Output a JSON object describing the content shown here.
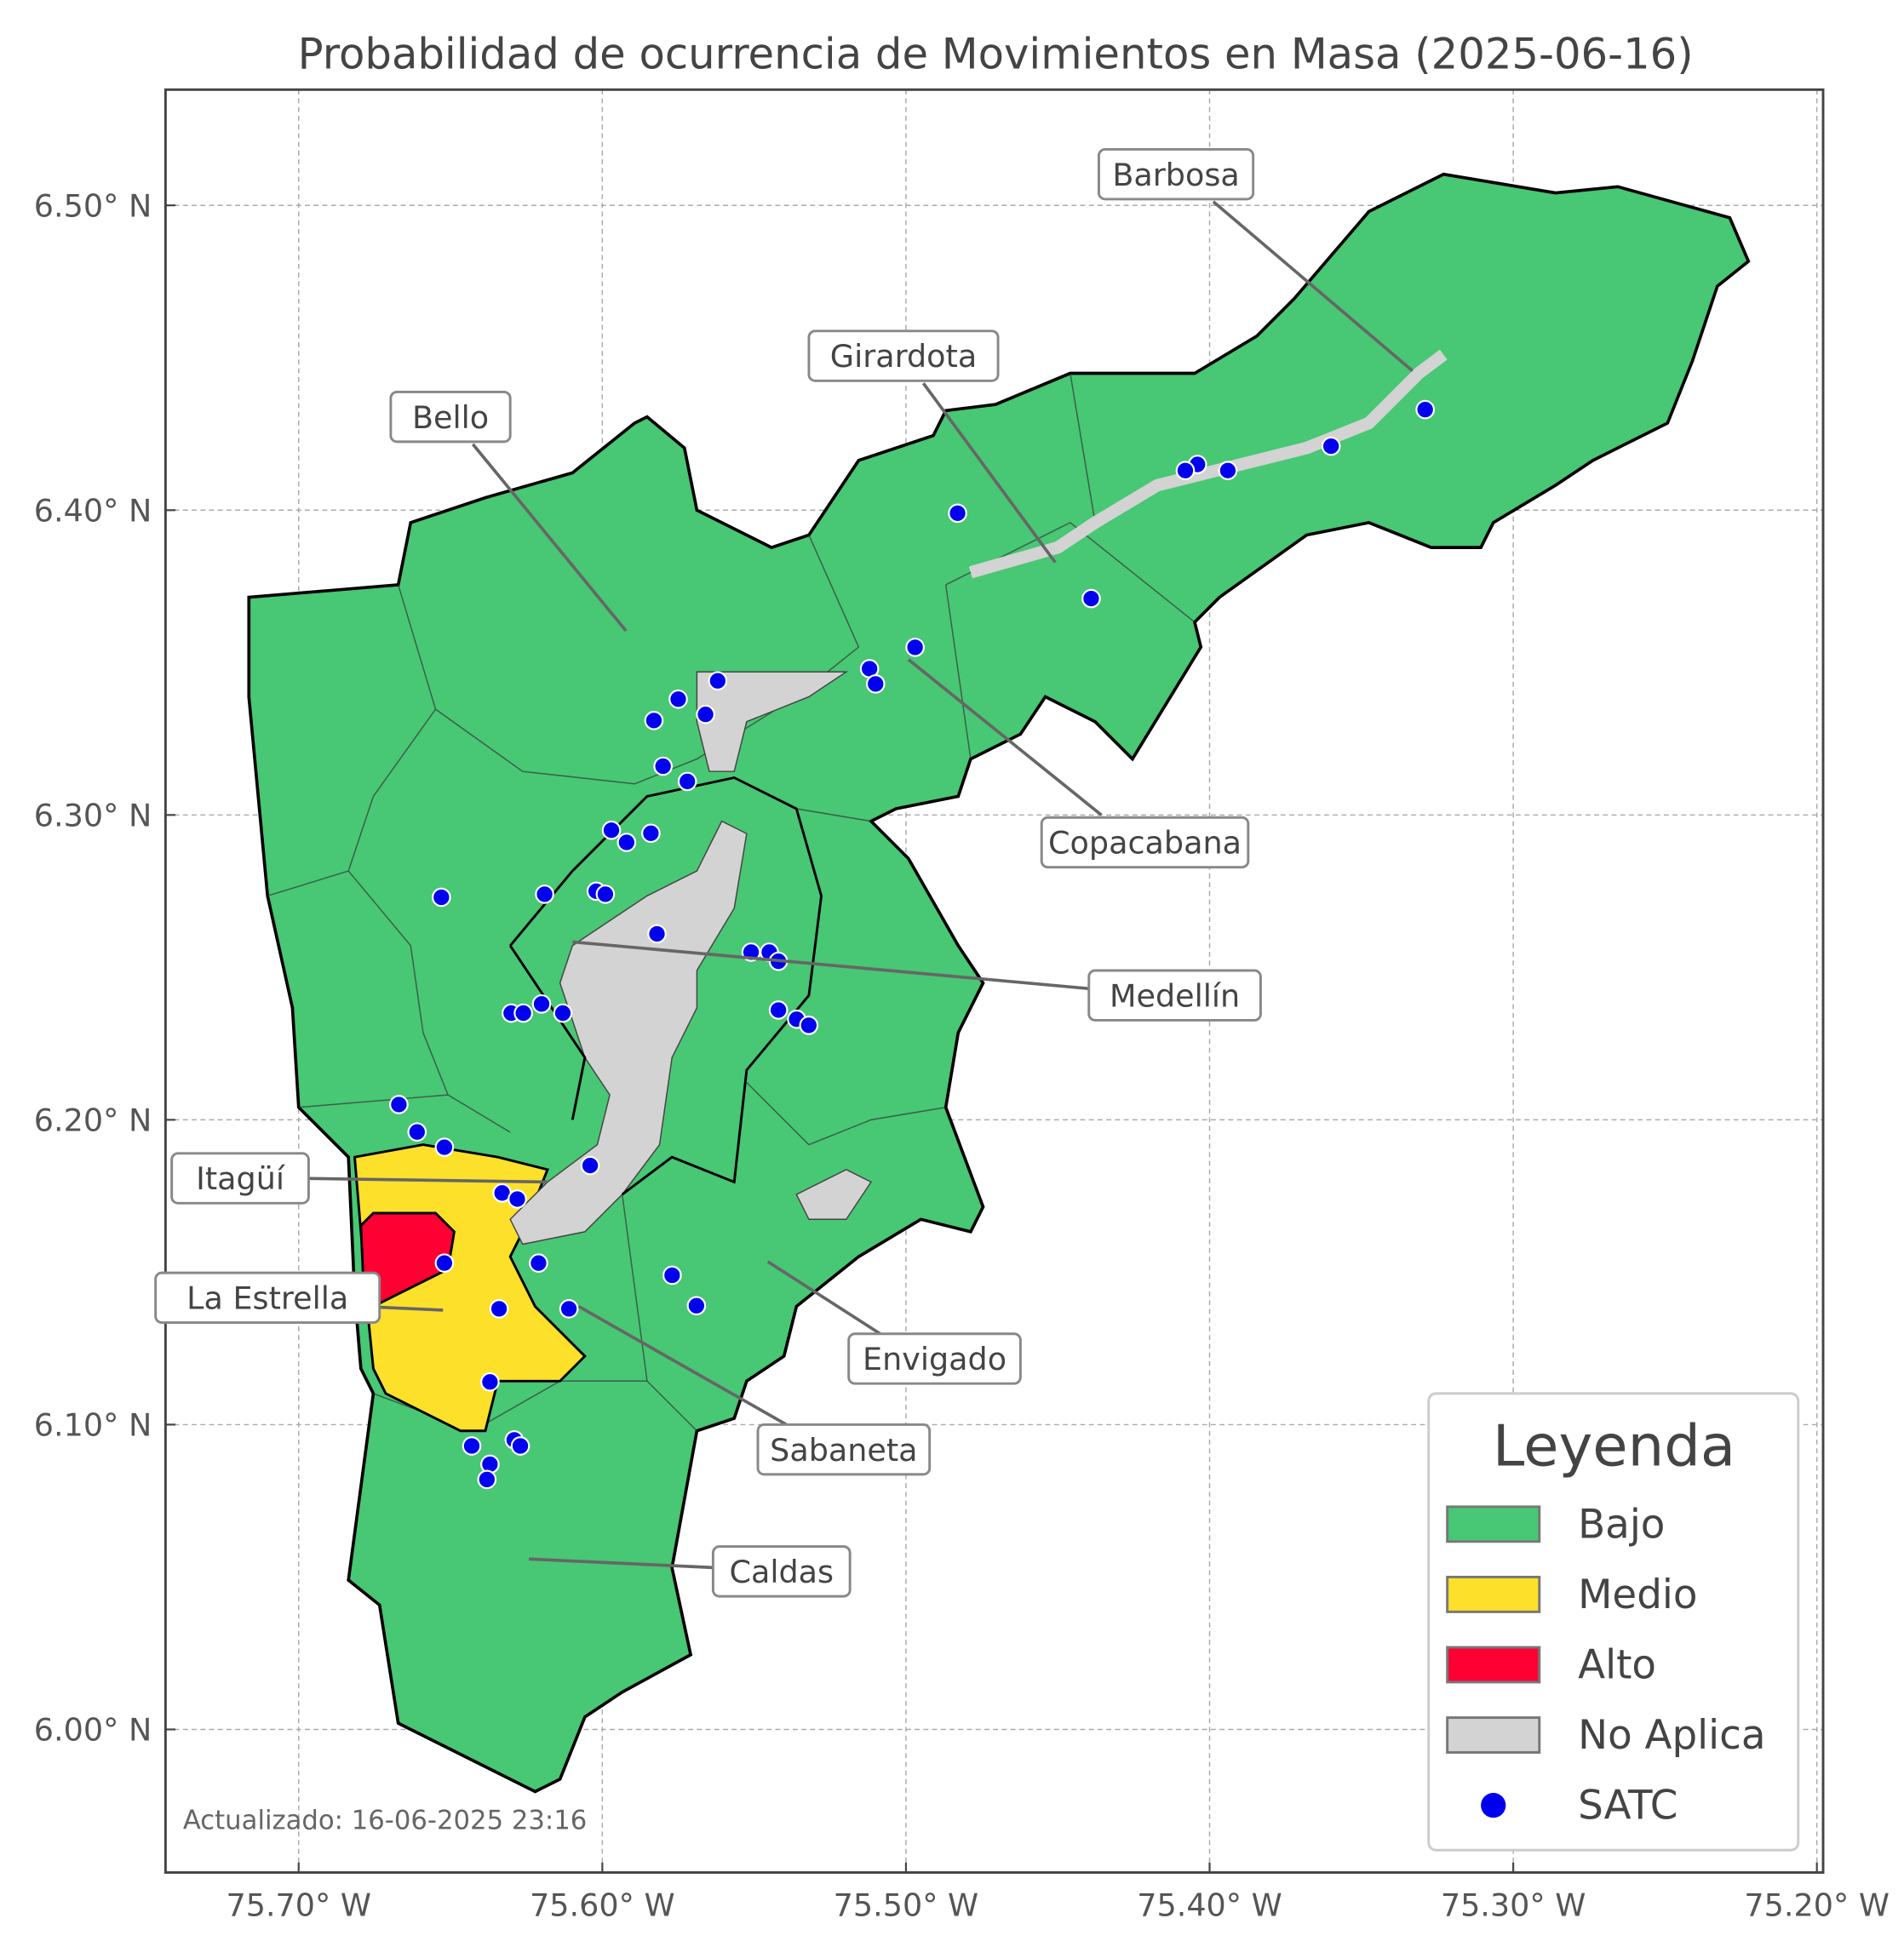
{
  "title": "Probabilidad de ocurrencia de Movimientos en Masa (2025-06-16)",
  "footer": "Actualizado: 16-06-2025 23:16",
  "colors": {
    "bajo": "#48c774",
    "medio": "#fde02a",
    "alto": "#ff0033",
    "no_aplica": "#d3d3d3",
    "satc": "#0000ee"
  },
  "axes": {
    "x_ticks": [
      {
        "value": -75.7,
        "label": "75.70° W"
      },
      {
        "value": -75.6,
        "label": "75.60° W"
      },
      {
        "value": -75.5,
        "label": "75.50° W"
      },
      {
        "value": -75.4,
        "label": "75.40° W"
      },
      {
        "value": -75.3,
        "label": "75.30° W"
      },
      {
        "value": -75.2,
        "label": "75.20° W"
      }
    ],
    "y_ticks": [
      {
        "value": 6.5,
        "label": "6.50° N"
      },
      {
        "value": 6.4,
        "label": "6.40° N"
      },
      {
        "value": 6.3,
        "label": "6.30° N"
      },
      {
        "value": 6.2,
        "label": "6.20° N"
      },
      {
        "value": 6.1,
        "label": "6.10° N"
      },
      {
        "value": 6.0,
        "label": "6.00° N"
      }
    ],
    "grid": true
  },
  "municipalities": [
    "Barbosa",
    "Girardota",
    "Bello",
    "Copacabana",
    "Medellín",
    "Itagüí",
    "La Estrella",
    "Envigado",
    "Sabaneta",
    "Caldas"
  ],
  "legend": {
    "title": "Leyenda",
    "items": [
      {
        "label": "Bajo",
        "type": "patch"
      },
      {
        "label": "Medio",
        "type": "patch"
      },
      {
        "label": "Alto",
        "type": "patch"
      },
      {
        "label": "No Aplica",
        "type": "patch"
      },
      {
        "label": "SATC",
        "type": "point"
      }
    ]
  },
  "satc_points": [
    [
      -75.329,
      6.433
    ],
    [
      -75.36,
      6.421
    ],
    [
      -75.394,
      6.413
    ],
    [
      -75.404,
      6.415
    ],
    [
      -75.408,
      6.413
    ],
    [
      -75.483,
      6.399
    ],
    [
      -75.439,
      6.371
    ],
    [
      -75.497,
      6.355
    ],
    [
      -75.512,
      6.348
    ],
    [
      -75.51,
      6.343
    ],
    [
      -75.562,
      6.344
    ],
    [
      -75.575,
      6.338
    ],
    [
      -75.566,
      6.333
    ],
    [
      -75.583,
      6.331
    ],
    [
      -75.58,
      6.316
    ],
    [
      -75.572,
      6.311
    ],
    [
      -75.597,
      6.295
    ],
    [
      -75.592,
      6.291
    ],
    [
      -75.584,
      6.294
    ],
    [
      -75.653,
      6.273
    ],
    [
      -75.619,
      6.274
    ],
    [
      -75.602,
      6.275
    ],
    [
      -75.599,
      6.274
    ],
    [
      -75.582,
      6.261
    ],
    [
      -75.551,
      6.255
    ],
    [
      -75.545,
      6.255
    ],
    [
      -75.542,
      6.252
    ],
    [
      -75.62,
      6.238
    ],
    [
      -75.63,
      6.235
    ],
    [
      -75.626,
      6.235
    ],
    [
      -75.613,
      6.235
    ],
    [
      -75.542,
      6.236
    ],
    [
      -75.536,
      6.233
    ],
    [
      -75.532,
      6.231
    ],
    [
      -75.667,
      6.205
    ],
    [
      -75.661,
      6.196
    ],
    [
      -75.652,
      6.191
    ],
    [
      -75.604,
      6.185
    ],
    [
      -75.633,
      6.176
    ],
    [
      -75.628,
      6.174
    ],
    [
      -75.652,
      6.153
    ],
    [
      -75.621,
      6.153
    ],
    [
      -75.577,
      6.149
    ],
    [
      -75.569,
      6.139
    ],
    [
      -75.634,
      6.138
    ],
    [
      -75.611,
      6.138
    ],
    [
      -75.637,
      6.114
    ],
    [
      -75.643,
      6.093
    ],
    [
      -75.629,
      6.095
    ],
    [
      -75.627,
      6.093
    ],
    [
      -75.637,
      6.087
    ],
    [
      -75.638,
      6.082
    ]
  ]
}
